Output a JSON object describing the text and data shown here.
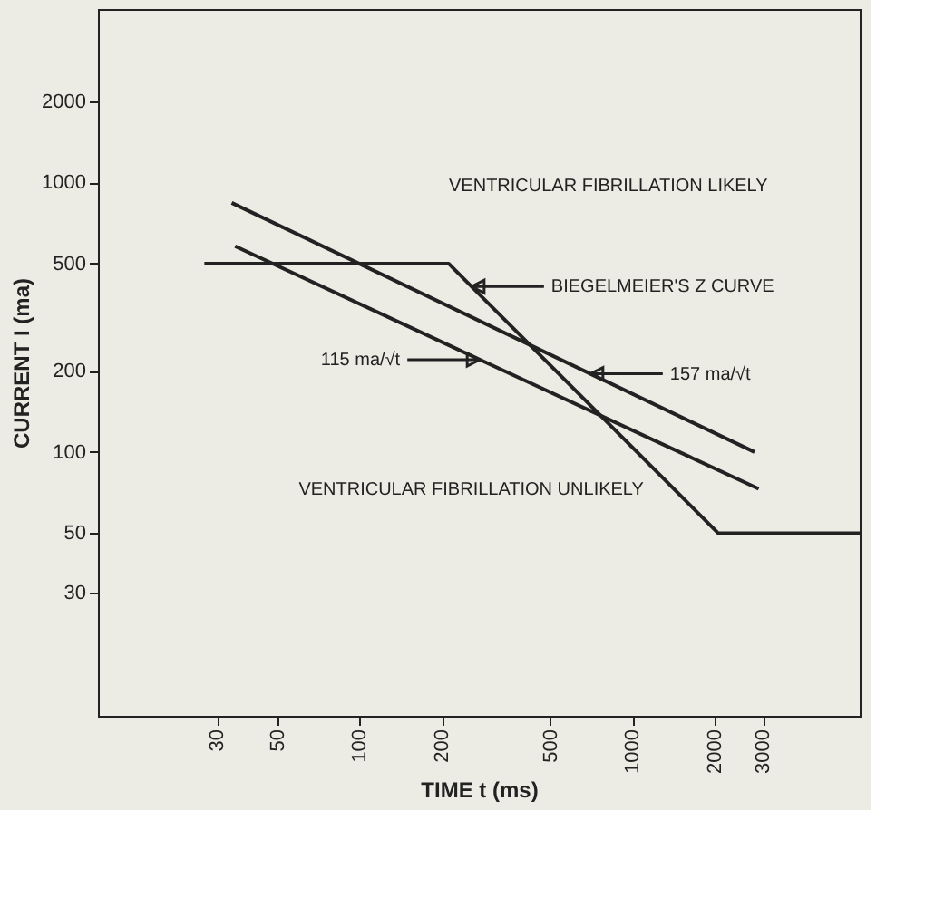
{
  "chart_data": {
    "type": "line",
    "xlabel": "TIME t (ms)",
    "ylabel": "CURRENT I (ma)",
    "log": "xy",
    "grid": false,
    "marker": "none",
    "line_style": "solid",
    "xlim": [
      11,
      6800
    ],
    "ylim": [
      10.5,
      4400
    ],
    "xticks": [
      30,
      50,
      100,
      200,
      500,
      1000,
      2000,
      3000
    ],
    "yticks": [
      30,
      50,
      100,
      200,
      500,
      1000,
      2000
    ],
    "series": [
      {
        "color": "#222222",
        "x": [
          34,
          2800
        ],
        "values": [
          840,
          100
        ]
      },
      {
        "color": "#222222",
        "x": [
          35,
          2900
        ],
        "values": [
          580,
          73
        ]
      },
      {
        "color": "#222222",
        "x": [
          27,
          212,
          2060,
          6800
        ],
        "values": [
          500,
          500,
          50,
          50
        ]
      }
    ],
    "annotations": [
      "VENTRICULAR FIBRILLATION LIKELY",
      "VENTRICULAR FIBRILLATION UNLIKELY",
      {
        "text": "BIEGELMEIER'S Z CURVE",
        "x": 257,
        "y": 411
      },
      {
        "text": "115 ma/√t",
        "x": 276,
        "y": 220
      },
      {
        "text": "157 ma/√t",
        "x": 700,
        "y": 195
      }
    ]
  }
}
